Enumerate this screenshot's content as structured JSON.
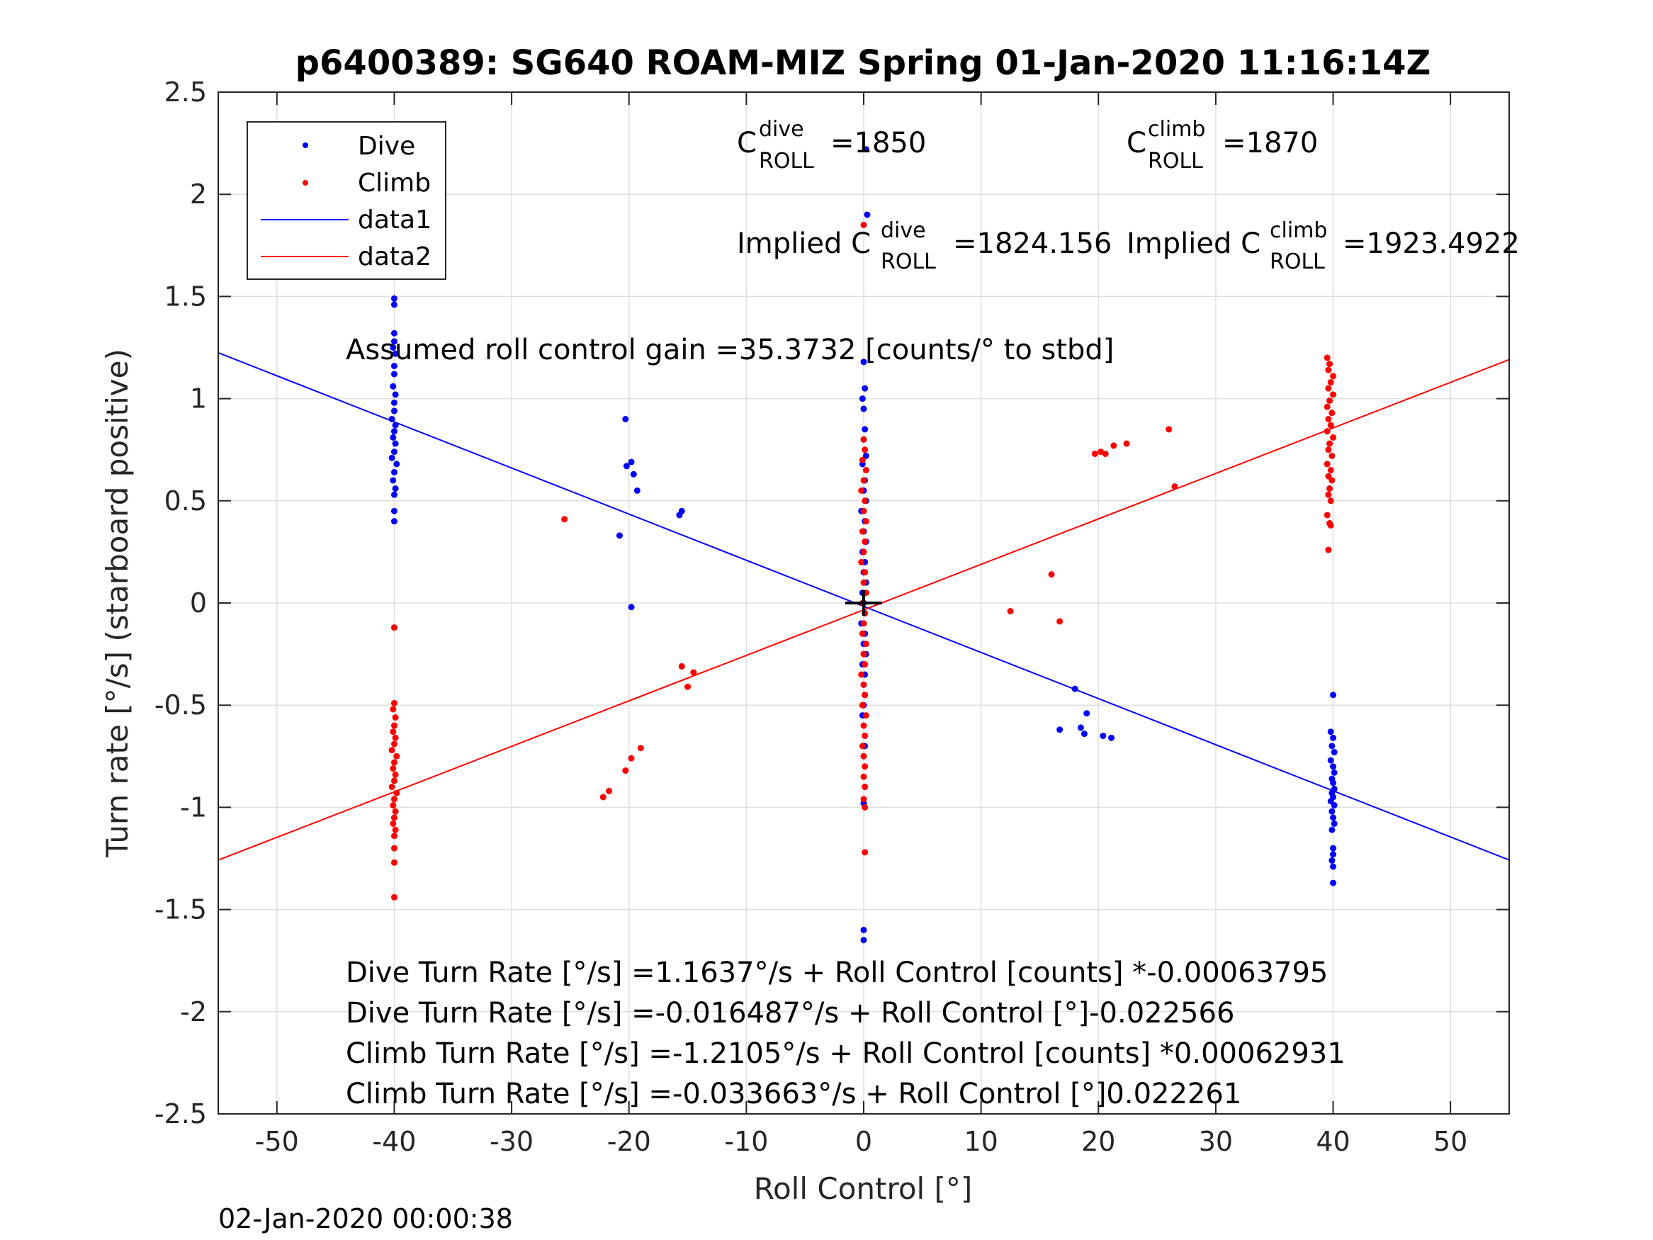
{
  "chart_data": {
    "type": "scatter",
    "title": "p6400389: SG640 ROAM-MIZ Spring 01-Jan-2020 11:16:14Z",
    "xlabel": "Roll Control [°]",
    "ylabel": "Turn rate [°/s] (starboard positive)",
    "xlim": [
      -55,
      55
    ],
    "ylim": [
      -2.5,
      2.5
    ],
    "xticks": [
      -50,
      -40,
      -30,
      -20,
      -10,
      0,
      10,
      20,
      30,
      40,
      50
    ],
    "xtick_labels": [
      "-50",
      "-40",
      "-30",
      "-20",
      "-10",
      "0",
      "10",
      "20",
      "30",
      "40",
      "50"
    ],
    "yticks": [
      2.5,
      2,
      1.5,
      1,
      0.5,
      0,
      -0.5,
      -1,
      -1.5,
      -2,
      -2.5
    ],
    "ytick_labels": [
      "2.5",
      "2",
      "1.5",
      "1",
      "0.5",
      "0",
      "-0.5",
      "-1",
      "-1.5",
      "-2",
      "-2.5"
    ],
    "grid": true,
    "legend_position": "top-left",
    "colors": {
      "dive": "#0000ff",
      "climb": "#ff0000",
      "axes": "#262626",
      "grid": "#dfdfdf"
    },
    "legend": [
      {
        "label": "Dive",
        "kind": "marker",
        "color": "#0000ff"
      },
      {
        "label": "Climb",
        "kind": "marker",
        "color": "#ff0000"
      },
      {
        "label": "data1",
        "kind": "line",
        "color": "#0000ff"
      },
      {
        "label": "data2",
        "kind": "line",
        "color": "#ff0000"
      }
    ],
    "series": [
      {
        "name": "Dive",
        "kind": "scatter",
        "color": "#0000ff",
        "points": [
          [
            -40,
            1.49
          ],
          [
            -40,
            1.46
          ],
          [
            -40,
            1.32
          ],
          [
            -40,
            1.28
          ],
          [
            -40.1,
            1.25
          ],
          [
            -39.9,
            1.22
          ],
          [
            -40,
            1.16
          ],
          [
            -40,
            1.12
          ],
          [
            -40.1,
            1.06
          ],
          [
            -39.9,
            1.02
          ],
          [
            -40,
            0.98
          ],
          [
            -40,
            0.94
          ],
          [
            -40.2,
            0.9
          ],
          [
            -39.9,
            0.87
          ],
          [
            -40,
            0.84
          ],
          [
            -40.1,
            0.81
          ],
          [
            -39.9,
            0.78
          ],
          [
            -40,
            0.74
          ],
          [
            -40.2,
            0.71
          ],
          [
            -39.8,
            0.68
          ],
          [
            -40,
            0.64
          ],
          [
            -40.1,
            0.6
          ],
          [
            -39.9,
            0.56
          ],
          [
            -40,
            0.53
          ],
          [
            -40,
            0.45
          ],
          [
            -40,
            0.4
          ],
          [
            -20.3,
            0.9
          ],
          [
            -20.2,
            0.67
          ],
          [
            -19.8,
            0.69
          ],
          [
            -19.6,
            0.63
          ],
          [
            -19.3,
            0.55
          ],
          [
            -15.7,
            0.43
          ],
          [
            -15.5,
            0.45
          ],
          [
            -20.8,
            0.33
          ],
          [
            -19.8,
            -0.02
          ],
          [
            0,
            1.18
          ],
          [
            0.1,
            1.05
          ],
          [
            -0.1,
            1.0
          ],
          [
            0,
            0.95
          ],
          [
            0.1,
            0.85
          ],
          [
            0,
            0.8
          ],
          [
            0.2,
            0.72
          ],
          [
            -0.1,
            0.68
          ],
          [
            0.1,
            0.6
          ],
          [
            0,
            0.55
          ],
          [
            0.2,
            0.5
          ],
          [
            -0.2,
            0.45
          ],
          [
            0.1,
            0.4
          ],
          [
            0,
            0.35
          ],
          [
            0.2,
            0.3
          ],
          [
            -0.1,
            0.25
          ],
          [
            0.1,
            0.2
          ],
          [
            0,
            0.15
          ],
          [
            0.2,
            0.1
          ],
          [
            -0.1,
            0.05
          ],
          [
            0,
            0.0
          ],
          [
            0.1,
            -0.05
          ],
          [
            -0.2,
            -0.1
          ],
          [
            0.1,
            -0.15
          ],
          [
            0,
            -0.2
          ],
          [
            0.2,
            -0.25
          ],
          [
            -0.1,
            -0.3
          ],
          [
            0.1,
            -0.35
          ],
          [
            0,
            -0.4
          ],
          [
            0.1,
            -0.45
          ],
          [
            0,
            -0.5
          ],
          [
            -0.1,
            -0.55
          ],
          [
            0.1,
            -0.7
          ],
          [
            0,
            -0.98
          ],
          [
            0,
            -1.6
          ],
          [
            0,
            -1.65
          ],
          [
            0.3,
            1.9
          ],
          [
            0.2,
            2.22
          ],
          [
            18,
            -0.42
          ],
          [
            19,
            -0.54
          ],
          [
            16.7,
            -0.62
          ],
          [
            18.5,
            -0.61
          ],
          [
            18.8,
            -0.64
          ],
          [
            20.4,
            -0.65
          ],
          [
            21.1,
            -0.66
          ],
          [
            40,
            -0.45
          ],
          [
            39.8,
            -0.63
          ],
          [
            40,
            -0.66
          ],
          [
            39.9,
            -0.7
          ],
          [
            40.1,
            -0.73
          ],
          [
            39.8,
            -0.77
          ],
          [
            40,
            -0.8
          ],
          [
            40.1,
            -0.83
          ],
          [
            39.9,
            -0.86
          ],
          [
            40,
            -0.88
          ],
          [
            40.1,
            -0.91
          ],
          [
            39.9,
            -0.93
          ],
          [
            40,
            -0.95
          ],
          [
            39.8,
            -0.97
          ],
          [
            40.1,
            -0.99
          ],
          [
            39.9,
            -1.02
          ],
          [
            40,
            -1.05
          ],
          [
            40.1,
            -1.08
          ],
          [
            39.9,
            -1.11
          ],
          [
            40,
            -1.2
          ],
          [
            40,
            -1.23
          ],
          [
            39.9,
            -1.26
          ],
          [
            40,
            -1.29
          ],
          [
            40,
            -1.37
          ]
        ]
      },
      {
        "name": "Climb",
        "kind": "scatter",
        "color": "#ff0000",
        "points": [
          [
            -40,
            -0.12
          ],
          [
            -40,
            -0.49
          ],
          [
            -40.1,
            -0.52
          ],
          [
            -39.9,
            -0.56
          ],
          [
            -40,
            -0.6
          ],
          [
            -40.1,
            -0.63
          ],
          [
            -39.9,
            -0.66
          ],
          [
            -40,
            -0.69
          ],
          [
            -40.2,
            -0.72
          ],
          [
            -39.8,
            -0.75
          ],
          [
            -40,
            -0.78
          ],
          [
            -40.1,
            -0.81
          ],
          [
            -39.9,
            -0.84
          ],
          [
            -40,
            -0.87
          ],
          [
            -40.2,
            -0.9
          ],
          [
            -39.8,
            -0.93
          ],
          [
            -40,
            -0.96
          ],
          [
            -40.1,
            -0.99
          ],
          [
            -39.9,
            -1.02
          ],
          [
            -40,
            -1.05
          ],
          [
            -40.1,
            -1.08
          ],
          [
            -39.9,
            -1.11
          ],
          [
            -40,
            -1.14
          ],
          [
            -40,
            -1.2
          ],
          [
            -40,
            -1.27
          ],
          [
            -40,
            -1.44
          ],
          [
            -25.5,
            0.41
          ],
          [
            -15.5,
            -0.31
          ],
          [
            -14.5,
            -0.34
          ],
          [
            -15.0,
            -0.41
          ],
          [
            -19.0,
            -0.71
          ],
          [
            -19.8,
            -0.76
          ],
          [
            -20.3,
            -0.82
          ],
          [
            -21.7,
            -0.92
          ],
          [
            -22.2,
            -0.95
          ],
          [
            0,
            1.85
          ],
          [
            0,
            0.8
          ],
          [
            0.1,
            0.75
          ],
          [
            -0.1,
            0.7
          ],
          [
            0.2,
            0.65
          ],
          [
            0,
            0.6
          ],
          [
            -0.2,
            0.55
          ],
          [
            0.1,
            0.5
          ],
          [
            0,
            0.45
          ],
          [
            0.2,
            0.4
          ],
          [
            -0.1,
            0.35
          ],
          [
            0.1,
            0.3
          ],
          [
            0,
            0.25
          ],
          [
            -0.2,
            0.2
          ],
          [
            0.1,
            0.15
          ],
          [
            0,
            0.1
          ],
          [
            0.2,
            0.05
          ],
          [
            -0.1,
            0.0
          ],
          [
            0.1,
            -0.05
          ],
          [
            0,
            -0.1
          ],
          [
            -0.1,
            -0.15
          ],
          [
            0.2,
            -0.2
          ],
          [
            0,
            -0.25
          ],
          [
            0.1,
            -0.3
          ],
          [
            -0.2,
            -0.35
          ],
          [
            0,
            -0.4
          ],
          [
            0.1,
            -0.45
          ],
          [
            -0.1,
            -0.5
          ],
          [
            0.2,
            -0.55
          ],
          [
            0,
            -0.6
          ],
          [
            0.1,
            -0.65
          ],
          [
            -0.1,
            -0.7
          ],
          [
            0,
            -0.75
          ],
          [
            0.1,
            -0.8
          ],
          [
            0,
            -0.85
          ],
          [
            0.1,
            -0.9
          ],
          [
            0,
            -0.96
          ],
          [
            0.1,
            -1.0
          ],
          [
            0.1,
            -1.22
          ],
          [
            12.5,
            -0.04
          ],
          [
            16.0,
            0.14
          ],
          [
            16.7,
            -0.09
          ],
          [
            19.7,
            0.73
          ],
          [
            20.2,
            0.74
          ],
          [
            20.6,
            0.73
          ],
          [
            21.3,
            0.77
          ],
          [
            22.4,
            0.78
          ],
          [
            26,
            0.85
          ],
          [
            26.5,
            0.57
          ],
          [
            39.5,
            1.2
          ],
          [
            39.7,
            1.17
          ],
          [
            39.6,
            1.14
          ],
          [
            40,
            1.11
          ],
          [
            39.8,
            1.08
          ],
          [
            39.6,
            1.05
          ],
          [
            40,
            1.02
          ],
          [
            39.7,
            0.99
          ],
          [
            39.5,
            0.96
          ],
          [
            39.9,
            0.93
          ],
          [
            39.6,
            0.9
          ],
          [
            39.8,
            0.87
          ],
          [
            39.5,
            0.84
          ],
          [
            40,
            0.81
          ],
          [
            39.7,
            0.78
          ],
          [
            39.6,
            0.75
          ],
          [
            39.9,
            0.72
          ],
          [
            39.5,
            0.68
          ],
          [
            39.8,
            0.65
          ],
          [
            39.6,
            0.62
          ],
          [
            39.9,
            0.6
          ],
          [
            39.7,
            0.56
          ],
          [
            39.6,
            0.53
          ],
          [
            39.8,
            0.5
          ],
          [
            39.5,
            0.43
          ],
          [
            39.7,
            0.39
          ],
          [
            39.8,
            0.38
          ],
          [
            39.6,
            0.26
          ]
        ]
      },
      {
        "name": "data1",
        "kind": "line",
        "color": "#0000ff",
        "slope": -0.022566,
        "intercept": -0.016487
      },
      {
        "name": "data2",
        "kind": "line",
        "color": "#ff0000",
        "slope": 0.022261,
        "intercept": -0.033663
      }
    ],
    "annotations": {
      "c_dive": {
        "base": "C",
        "sup": "dive",
        "sub": "ROLL",
        "text": "=1850"
      },
      "c_climb": {
        "base": "C",
        "sup": "climb",
        "sub": "ROLL",
        "text": "=1870"
      },
      "implied_dive": {
        "prefix": "Implied C",
        "sup": "dive",
        "sub": "ROLL",
        "text": "=1824.156"
      },
      "implied_climb": {
        "prefix": "Implied C",
        "sup": "climb",
        "sub": "ROLL",
        "text": "=1923.4922"
      },
      "gain": "Assumed roll control gain =35.3732 [counts/° to stbd]",
      "eq1": "Dive Turn Rate [°/s] =1.1637°/s + Roll Control [counts] *-0.00063795",
      "eq2": "Dive Turn Rate [°/s] =-0.016487°/s + Roll Control [°]-0.022566",
      "eq3": "Climb Turn Rate [°/s] =-1.2105°/s + Roll Control [counts] *0.00062931",
      "eq4": "Climb Turn Rate [°/s] =-0.033663°/s + Roll Control [°]0.022261"
    }
  },
  "footer": {
    "timestamp": "02-Jan-2020 00:00:38"
  }
}
